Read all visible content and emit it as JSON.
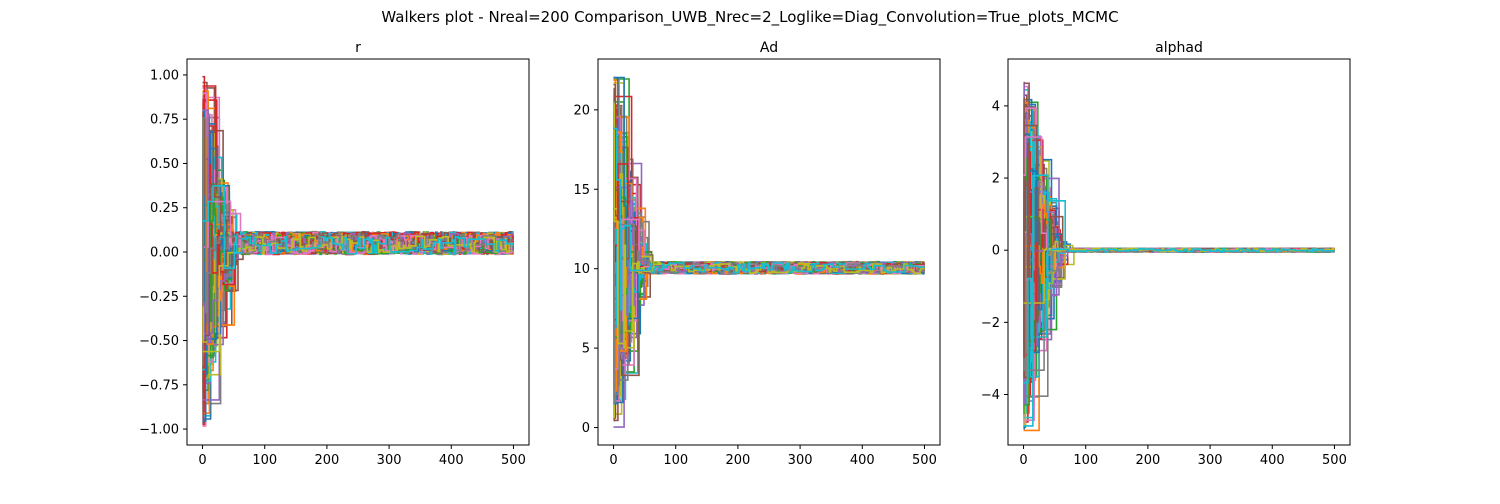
{
  "figure": {
    "suptitle": "Walkers plot - Nreal=200 Comparison_UWB_Nrec=2_Loglike=Diag_Convolution=True_plots_MCMC"
  },
  "palette": [
    "#1f77b4",
    "#ff7f0e",
    "#2ca02c",
    "#d62728",
    "#9467bd",
    "#8c564b",
    "#e377c2",
    "#7f7f7f",
    "#bcbd22",
    "#17becf"
  ],
  "chart_data": [
    {
      "type": "line",
      "title": "r",
      "xlabel": "",
      "ylabel": "",
      "xlim": [
        -25,
        525
      ],
      "ylim": [
        -1.09,
        1.09
      ],
      "xticks": [
        0,
        100,
        200,
        300,
        400,
        500
      ],
      "yticks": [
        -1.0,
        -0.75,
        -0.5,
        -0.25,
        0.0,
        0.25,
        0.5,
        0.75,
        1.0
      ],
      "ytick_labels": [
        "−1.00",
        "−0.75",
        "−0.50",
        "−0.25",
        "0.00",
        "0.25",
        "0.50",
        "0.75",
        "1.00"
      ],
      "n_steps": 500,
      "n_walkers": 200,
      "burn_in_steps": 50,
      "init_range": [
        -1.0,
        1.0
      ],
      "converged_center": 0.05,
      "converged_spread": 0.05,
      "grid": false,
      "legend": "none"
    },
    {
      "type": "line",
      "title": "Ad",
      "xlabel": "",
      "ylabel": "",
      "xlim": [
        -25,
        525
      ],
      "ylim": [
        -1.1,
        23.2
      ],
      "xticks": [
        0,
        100,
        200,
        300,
        400,
        500
      ],
      "yticks": [
        0,
        5,
        10,
        15,
        20
      ],
      "ytick_labels": [
        "0",
        "5",
        "10",
        "15",
        "20"
      ],
      "n_steps": 500,
      "n_walkers": 200,
      "burn_in_steps": 50,
      "init_range": [
        0.0,
        22.2
      ],
      "converged_center": 10.05,
      "converged_spread": 0.3,
      "grid": false,
      "legend": "none"
    },
    {
      "type": "line",
      "title": "alphad",
      "xlabel": "",
      "ylabel": "",
      "xlim": [
        -25,
        525
      ],
      "ylim": [
        -5.4,
        5.3
      ],
      "xticks": [
        0,
        100,
        200,
        300,
        400,
        500
      ],
      "yticks": [
        -4,
        -2,
        0,
        2,
        4
      ],
      "ytick_labels": [
        "−4",
        "−2",
        "0",
        "2",
        "4"
      ],
      "n_steps": 500,
      "n_walkers": 200,
      "burn_in_steps": 60,
      "init_range": [
        -5.0,
        4.9
      ],
      "converged_center": 0.0,
      "converged_spread": 0.04,
      "grid": false,
      "legend": "none"
    }
  ]
}
